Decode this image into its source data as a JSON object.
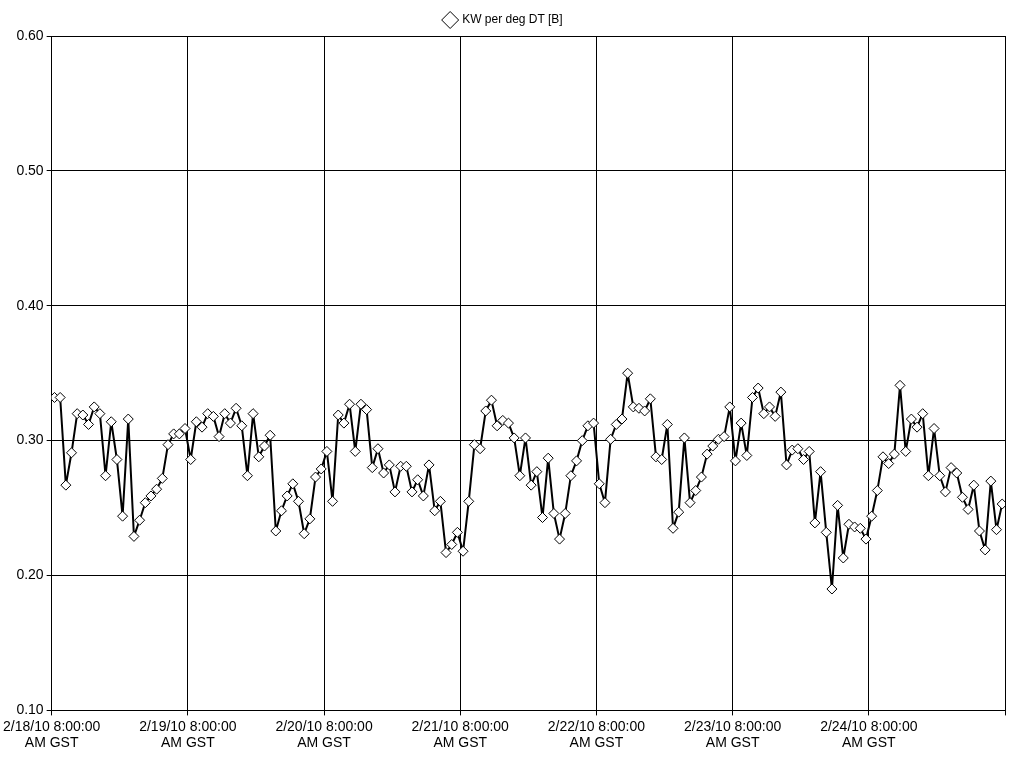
{
  "chart_data": {
    "type": "line",
    "marker": "diamond",
    "line_style": "solid",
    "grid": true,
    "legend": "top",
    "xlim": [
      "--02-18T08:00",
      "--02-25T08:00"
    ],
    "xticks": [
      {
        "value": "--02-18T08:00",
        "label": "2/18/10 8:00:00 AM GST"
      },
      {
        "value": "--02-19T08:00",
        "label": "2/19/10 8:00:00 AM GST"
      },
      {
        "value": "--02-20T08:00",
        "label": "2/20/10 8:00:00 AM GST"
      },
      {
        "value": "--02-21T08:00",
        "label": "2/21/10 8:00:00 AM GST"
      },
      {
        "value": "--02-22T08:00",
        "label": "2/22/10 8:00:00 AM GST"
      },
      {
        "value": "--02-23T08:00",
        "label": "2/23/10 8:00:00 AM GST"
      },
      {
        "value": "--02-24T08:00",
        "label": "2/24/10 8:00:00 AM GST"
      },
      {
        "value": "--02-25T08:00",
        "label": null
      }
    ],
    "ylim": [
      0.1,
      0.6
    ],
    "yticks": [
      {
        "value": 0.1,
        "label": "0.10"
      },
      {
        "value": 0.2,
        "label": "0.20"
      },
      {
        "value": 0.3,
        "label": "0.30"
      },
      {
        "value": 0.4,
        "label": "0.40"
      },
      {
        "value": 0.5,
        "label": "0.50"
      },
      {
        "value": 0.6,
        "label": "0.60"
      }
    ],
    "x": [
      "--02-18T08:30",
      "--02-18T09:30",
      "--02-18T10:30",
      "--02-18T11:30",
      "--02-18T12:30",
      "--02-18T13:30",
      "--02-18T14:30",
      "--02-18T15:30",
      "--02-18T16:30",
      "--02-18T17:30",
      "--02-18T18:30",
      "--02-18T19:30",
      "--02-18T20:30",
      "--02-18T21:30",
      "--02-18T22:30",
      "--02-18T23:30",
      "--02-19T00:30",
      "--02-19T01:30",
      "--02-19T02:30",
      "--02-19T03:30",
      "--02-19T04:30",
      "--02-19T05:30",
      "--02-19T06:30",
      "--02-19T07:30",
      "--02-19T08:30",
      "--02-19T09:30",
      "--02-19T10:30",
      "--02-19T11:30",
      "--02-19T12:30",
      "--02-19T13:30",
      "--02-19T14:30",
      "--02-19T15:30",
      "--02-19T16:30",
      "--02-19T17:30",
      "--02-19T18:30",
      "--02-19T19:30",
      "--02-19T20:30",
      "--02-19T21:30",
      "--02-19T22:30",
      "--02-19T23:30",
      "--02-20T00:30",
      "--02-20T01:30",
      "--02-20T02:30",
      "--02-20T03:30",
      "--02-20T04:30",
      "--02-20T05:30",
      "--02-20T06:30",
      "--02-20T07:30",
      "--02-20T08:30",
      "--02-20T09:30",
      "--02-20T10:30",
      "--02-20T11:30",
      "--02-20T12:30",
      "--02-20T13:30",
      "--02-20T14:30",
      "--02-20T15:30",
      "--02-20T16:30",
      "--02-20T17:30",
      "--02-20T18:30",
      "--02-20T19:30",
      "--02-20T20:30",
      "--02-20T21:30",
      "--02-20T22:30",
      "--02-20T23:30",
      "--02-21T00:30",
      "--02-21T01:30",
      "--02-21T02:30",
      "--02-21T03:30",
      "--02-21T04:30",
      "--02-21T05:30",
      "--02-21T06:30",
      "--02-21T07:30",
      "--02-21T08:30",
      "--02-21T09:30",
      "--02-21T10:30",
      "--02-21T11:30",
      "--02-21T12:30",
      "--02-21T13:30",
      "--02-21T14:30",
      "--02-21T15:30",
      "--02-21T16:30",
      "--02-21T17:30",
      "--02-21T18:30",
      "--02-21T19:30",
      "--02-21T20:30",
      "--02-21T21:30",
      "--02-21T22:30",
      "--02-21T23:30",
      "--02-22T00:30",
      "--02-22T01:30",
      "--02-22T02:30",
      "--02-22T03:30",
      "--02-22T04:30",
      "--02-22T05:30",
      "--02-22T06:30",
      "--02-22T07:30",
      "--02-22T08:30",
      "--02-22T09:30",
      "--02-22T10:30",
      "--02-22T11:30",
      "--02-22T12:30",
      "--02-22T13:30",
      "--02-22T14:30",
      "--02-22T15:30",
      "--02-22T16:30",
      "--02-22T17:30",
      "--02-22T18:30",
      "--02-22T19:30",
      "--02-22T20:30",
      "--02-22T21:30",
      "--02-22T22:30",
      "--02-22T23:30",
      "--02-23T00:30",
      "--02-23T01:30",
      "--02-23T02:30",
      "--02-23T03:30",
      "--02-23T04:30",
      "--02-23T05:30",
      "--02-23T06:30",
      "--02-23T07:30",
      "--02-23T08:30",
      "--02-23T09:30",
      "--02-23T10:30",
      "--02-23T11:30",
      "--02-23T12:30",
      "--02-23T13:30",
      "--02-23T14:30",
      "--02-23T15:30",
      "--02-23T16:30",
      "--02-23T17:30",
      "--02-23T18:30",
      "--02-23T19:30",
      "--02-23T20:30",
      "--02-23T21:30",
      "--02-23T22:30",
      "--02-23T23:30",
      "--02-24T00:30",
      "--02-24T01:30",
      "--02-24T02:30",
      "--02-24T03:30",
      "--02-24T04:30",
      "--02-24T05:30",
      "--02-24T06:30",
      "--02-24T07:30",
      "--02-24T08:30",
      "--02-24T09:30",
      "--02-24T10:30",
      "--02-24T11:30",
      "--02-24T12:30",
      "--02-24T13:30",
      "--02-24T14:30",
      "--02-24T15:30",
      "--02-24T16:30",
      "--02-24T17:30",
      "--02-24T18:30",
      "--02-24T19:30",
      "--02-24T20:30",
      "--02-24T21:30",
      "--02-24T22:30",
      "--02-24T23:30",
      "--02-25T00:30",
      "--02-25T01:30",
      "--02-25T02:30",
      "--02-25T03:30",
      "--02-25T04:30",
      "--02-25T05:30",
      "--02-25T06:30",
      "--02-25T07:30"
    ],
    "series": [
      {
        "name": "KW per deg DT [B]",
        "color": "#000000",
        "values": [
          0.332,
          0.332,
          0.267,
          0.291,
          0.32,
          0.319,
          0.312,
          0.325,
          0.32,
          0.274,
          0.314,
          0.286,
          0.244,
          0.316,
          0.229,
          0.241,
          0.254,
          0.259,
          0.264,
          0.272,
          0.297,
          0.305,
          0.305,
          0.309,
          0.286,
          0.314,
          0.31,
          0.32,
          0.318,
          0.303,
          0.32,
          0.313,
          0.324,
          0.311,
          0.274,
          0.32,
          0.288,
          0.296,
          0.304,
          0.233,
          0.248,
          0.259,
          0.268,
          0.255,
          0.231,
          0.242,
          0.273,
          0.279,
          0.292,
          0.255,
          0.319,
          0.313,
          0.327,
          0.292,
          0.327,
          0.323,
          0.28,
          0.294,
          0.276,
          0.282,
          0.262,
          0.281,
          0.281,
          0.262,
          0.271,
          0.259,
          0.282,
          0.248,
          0.255,
          0.217,
          0.223,
          0.232,
          0.218,
          0.255,
          0.297,
          0.294,
          0.322,
          0.33,
          0.311,
          0.315,
          0.313,
          0.302,
          0.274,
          0.302,
          0.267,
          0.277,
          0.243,
          0.287,
          0.246,
          0.227,
          0.246,
          0.274,
          0.285,
          0.3,
          0.311,
          0.313,
          0.268,
          0.254,
          0.301,
          0.312,
          0.316,
          0.35,
          0.325,
          0.324,
          0.322,
          0.331,
          0.288,
          0.286,
          0.312,
          0.235,
          0.247,
          0.302,
          0.254,
          0.263,
          0.273,
          0.29,
          0.296,
          0.301,
          0.303,
          0.325,
          0.285,
          0.313,
          0.289,
          0.332,
          0.339,
          0.32,
          0.325,
          0.318,
          0.336,
          0.282,
          0.293,
          0.294,
          0.286,
          0.292,
          0.239,
          0.277,
          0.232,
          0.19,
          0.252,
          0.213,
          0.238,
          0.236,
          0.235,
          0.227,
          0.244,
          0.263,
          0.288,
          0.283,
          0.29,
          0.341,
          0.292,
          0.316,
          0.31,
          0.32,
          0.274,
          0.309,
          0.274,
          0.262,
          0.28,
          0.276,
          0.258,
          0.249,
          0.267,
          0.233,
          0.219,
          0.27,
          0.234,
          0.253
        ]
      }
    ]
  }
}
